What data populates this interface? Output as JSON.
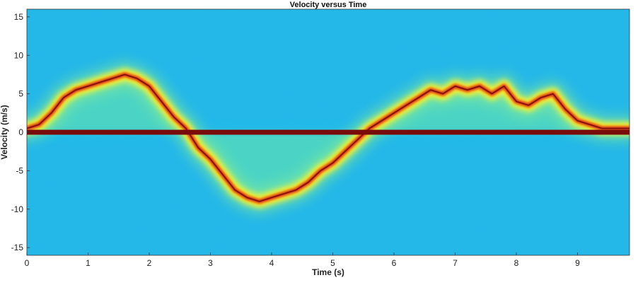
{
  "chart_data": {
    "type": "heatmap",
    "title": "Velocity versus Time",
    "xlabel": "Time (s)",
    "ylabel": "Velocity (m/s)",
    "xlim": [
      0,
      9.85
    ],
    "ylim": [
      -16,
      16
    ],
    "x_ticks": [
      0,
      1,
      2,
      3,
      4,
      5,
      6,
      7,
      8,
      9
    ],
    "y_ticks": [
      15,
      10,
      5,
      0,
      -5,
      -10,
      -15
    ],
    "grid": false,
    "legend": "none",
    "colormap": [
      "#1fa9e6",
      "#22c3e8",
      "#2fe0e0",
      "#8ff08a",
      "#fbf42f",
      "#ffb316",
      "#f05a12",
      "#c4121a",
      "#7a0b0b"
    ],
    "zero_band": {
      "velocity": 0,
      "color": "#7a0b0b"
    },
    "series": [
      {
        "x": [
          0.0,
          0.2,
          0.4,
          0.6,
          0.8,
          1.0,
          1.2,
          1.4,
          1.6,
          1.8,
          2.0,
          2.2,
          2.4,
          2.6,
          2.8,
          3.0,
          3.2,
          3.4,
          3.6,
          3.8,
          4.0,
          4.2,
          4.4,
          4.6,
          4.8,
          5.0,
          5.2,
          5.4,
          5.6,
          5.8,
          6.0,
          6.2,
          6.4,
          6.6,
          6.8,
          7.0,
          7.2,
          7.4,
          7.6,
          7.8,
          8.0,
          8.2,
          8.4,
          8.6,
          8.8,
          9.0,
          9.2,
          9.4,
          9.6,
          9.85
        ],
        "values": [
          0.5,
          1.0,
          2.5,
          4.5,
          5.5,
          6.0,
          6.5,
          7.0,
          7.5,
          7.0,
          6.0,
          4.0,
          2.0,
          0.5,
          -2.0,
          -3.5,
          -5.5,
          -7.5,
          -8.5,
          -9.0,
          -8.5,
          -8.0,
          -7.5,
          -6.5,
          -5.0,
          -4.0,
          -2.5,
          -1.0,
          0.5,
          1.5,
          2.5,
          3.5,
          4.5,
          5.5,
          5.0,
          6.0,
          5.5,
          6.0,
          5.0,
          6.0,
          4.0,
          3.5,
          4.5,
          5.0,
          3.0,
          1.5,
          1.0,
          0.5,
          0.5,
          0.5
        ]
      }
    ]
  }
}
